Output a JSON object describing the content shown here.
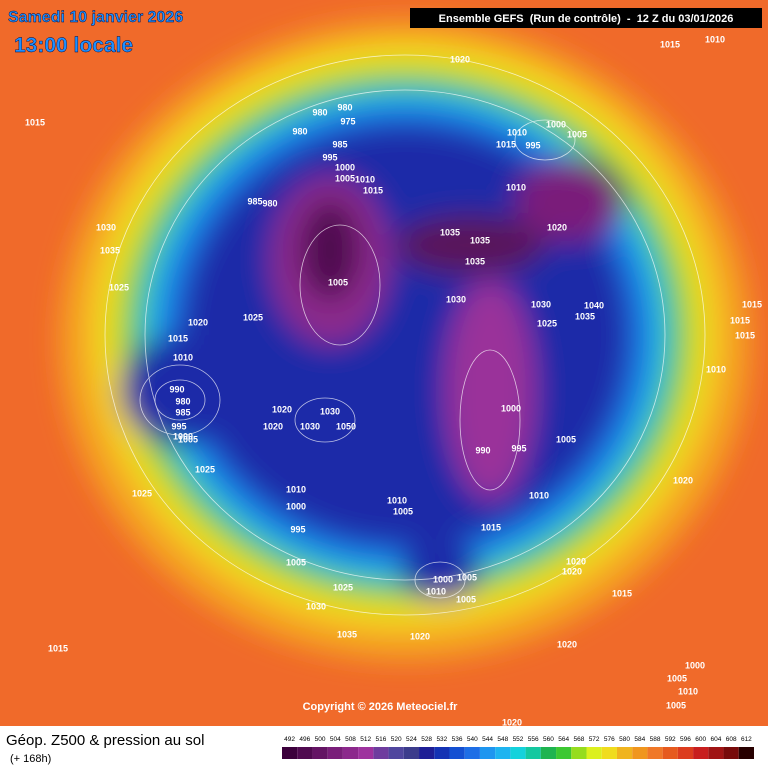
{
  "header": {
    "date": "Samedi 10 janvier 2026",
    "time": "13:00 locale",
    "run": "Ensemble GEFS  (Run de contrôle)  -  12 Z du 03/01/2026"
  },
  "copyright": "Copyright © 2026 Meteociel.fr",
  "footer": {
    "title": "Géop. Z500 & pression au sol",
    "lead": "(+ 168h)"
  },
  "legend": {
    "values": [
      492,
      496,
      500,
      504,
      508,
      512,
      516,
      520,
      524,
      528,
      532,
      536,
      540,
      544,
      548,
      552,
      556,
      560,
      564,
      568,
      572,
      576,
      580,
      584,
      588,
      592,
      596,
      600,
      604,
      608,
      612
    ],
    "colors": [
      "#3c003c",
      "#500a50",
      "#641464",
      "#7a1e7a",
      "#8c288c",
      "#9e329e",
      "#6e3c9e",
      "#50469e",
      "#3c3c8c",
      "#1e1e96",
      "#1432b4",
      "#1450d2",
      "#1e6ee6",
      "#1e96f0",
      "#1eb4f0",
      "#14d2dc",
      "#14c8a0",
      "#1eb450",
      "#3cc832",
      "#96dc1e",
      "#dcf01e",
      "#f0dc1e",
      "#f0b41e",
      "#f0961e",
      "#f07828",
      "#e65a1e",
      "#dc3c1e",
      "#c81e1e",
      "#a01414",
      "#780a0a",
      "#280000"
    ]
  },
  "isobar_labels": [
    1020,
    1015,
    1010,
    1015,
    980,
    975,
    980,
    980,
    985,
    995,
    1000,
    1005,
    1010,
    1015,
    985,
    980,
    1000,
    1005,
    1010,
    1015,
    995,
    1010,
    1020,
    1035,
    1035,
    1035,
    1030,
    1035,
    1025,
    1005,
    1030,
    1030,
    1040,
    1035,
    1025,
    1015,
    1015,
    1015,
    1010,
    1020,
    1025,
    1015,
    1010,
    990,
    980,
    985,
    995,
    1000,
    1005,
    1025,
    1025,
    1020,
    1030,
    1020,
    1030,
    1050,
    1000,
    990,
    995,
    1005,
    1010,
    1020,
    1010,
    1000,
    1010,
    1005,
    995,
    1015,
    1005,
    1020,
    1020,
    1025,
    1030,
    1000,
    1005,
    1010,
    1005,
    1015,
    1035,
    1020,
    1020,
    1015,
    1000,
    1005,
    1010,
    1005,
    1020
  ]
}
